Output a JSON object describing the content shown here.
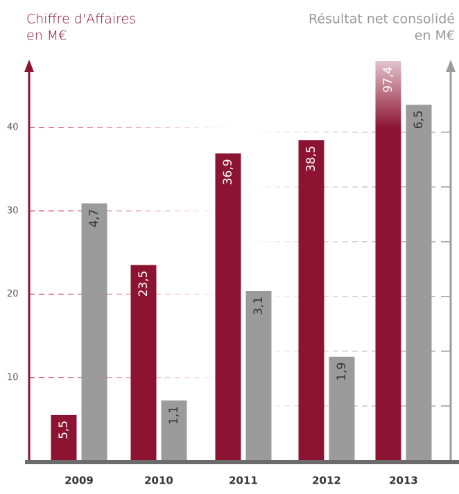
{
  "chart_data": {
    "type": "bar",
    "ylabel": [
      "Chiffre d'Affaires",
      "en M€"
    ],
    "y2label": [
      "Résultat net consolidé",
      "en M€"
    ],
    "categories": [
      "2009",
      "2010",
      "2011",
      "2012",
      "2013"
    ],
    "series": [
      {
        "name": "Chiffre d'Affaires",
        "color": "#8c1432",
        "values": [
          5.5,
          23.5,
          36.9,
          38.5,
          97.4
        ],
        "value_labels": [
          "5,5",
          "23,5",
          "36,9",
          "38,5",
          "97,4"
        ]
      },
      {
        "name": "Résultat net consolidé",
        "color": "#9b9b9b",
        "axis": "y2",
        "values": [
          4.7,
          1.1,
          3.1,
          1.9,
          6.5
        ],
        "value_labels": [
          "4,7",
          "1,1",
          "3,1",
          "1,9",
          "6,5"
        ]
      }
    ],
    "ylim": [
      0,
      48
    ],
    "yticks": [
      10,
      20,
      30,
      40
    ],
    "y2lim": [
      0,
      7.3
    ],
    "y2ticks": [
      1,
      2,
      3,
      4,
      5,
      6
    ],
    "grid": true
  }
}
